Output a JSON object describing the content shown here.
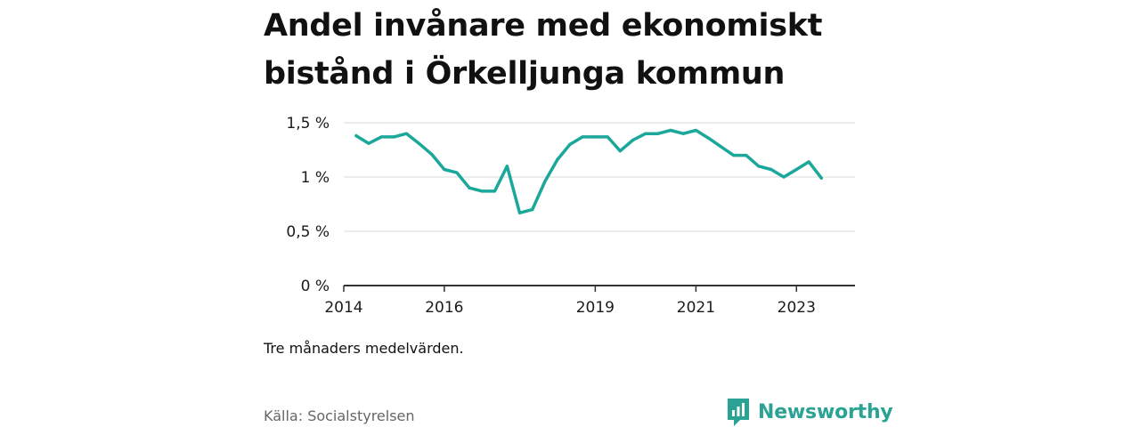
{
  "title": "Andel invånare med ekonomiskt bistånd i Örkelljunga kommun",
  "note": "Tre månaders medelvärden.",
  "source": "Källa: Socialstyrelsen",
  "brand": {
    "name": "Newsworthy",
    "icon": "newsworthy-logo-icon",
    "color": "#2aa394"
  },
  "colors": {
    "line": "#1ba89a",
    "grid": "#d9d9d9",
    "axis": "#333333"
  },
  "chart_data": {
    "type": "line",
    "title": "",
    "xlabel": "",
    "ylabel": "",
    "ylim": [
      0,
      1.5
    ],
    "xlim": [
      "2014-01-01",
      "2024-03-01"
    ],
    "grid": "horizontal",
    "y_ticks": [
      {
        "value": 0,
        "label": "0 %"
      },
      {
        "value": 0.5,
        "label": "0,5 %"
      },
      {
        "value": 1,
        "label": "1 %"
      },
      {
        "value": 1.5,
        "label": "1,5 %"
      }
    ],
    "x_ticks": [
      {
        "value": "2014-01-01",
        "label": "2014"
      },
      {
        "value": "2016-01-01",
        "label": "2016"
      },
      {
        "value": "2019-01-01",
        "label": "2019"
      },
      {
        "value": "2021-01-01",
        "label": "2021"
      },
      {
        "value": "2023-01-01",
        "label": "2023"
      }
    ],
    "series": [
      {
        "name": "",
        "x": [
          "2014-04",
          "2014-07",
          "2014-10",
          "2015-01",
          "2015-04",
          "2015-07",
          "2015-10",
          "2016-01",
          "2016-04",
          "2016-07",
          "2016-10",
          "2017-01",
          "2017-04",
          "2017-07",
          "2017-10",
          "2018-01",
          "2018-04",
          "2018-07",
          "2018-10",
          "2019-01",
          "2019-04",
          "2019-07",
          "2019-10",
          "2020-01",
          "2020-04",
          "2020-07",
          "2020-10",
          "2021-01",
          "2021-04",
          "2021-07",
          "2021-10",
          "2022-01",
          "2022-04",
          "2022-07",
          "2022-10",
          "2023-01",
          "2023-04",
          "2023-07"
        ],
        "values": [
          1.38,
          1.31,
          1.37,
          1.37,
          1.4,
          1.31,
          1.21,
          1.07,
          1.04,
          0.9,
          0.87,
          0.87,
          1.1,
          0.67,
          0.7,
          0.96,
          1.16,
          1.3,
          1.37,
          1.37,
          1.37,
          1.24,
          1.34,
          1.4,
          1.4,
          1.43,
          1.4,
          1.43,
          1.36,
          1.28,
          1.2,
          1.2,
          1.1,
          1.07,
          1.0,
          1.07,
          1.14,
          0.99
        ]
      }
    ]
  }
}
